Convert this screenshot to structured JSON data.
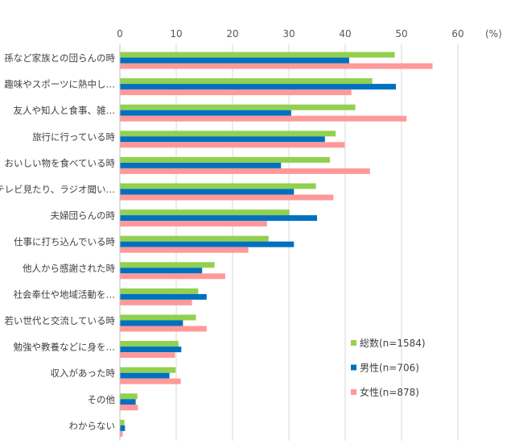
{
  "chart_data": {
    "type": "bar",
    "orientation": "horizontal",
    "unit": "(%)",
    "xlim": [
      0,
      60
    ],
    "x_ticks": [
      0,
      10,
      20,
      30,
      40,
      50,
      60
    ],
    "grid": true,
    "legend_position": "bottom-right",
    "categories": [
      "孫など家族との団らんの時",
      "趣味やスポーツに熱中し…",
      "友人や知人と食事、雑…",
      "旅行に行っている時",
      "おいしい物を食べている時",
      "テレビ見たり、ラジオ聞い…",
      "夫婦団らんの時",
      "仕事に打ち込んでいる時",
      "他人から感謝された時",
      "社会奉仕や地域活動を…",
      "若い世代と交流している時",
      "勉強や教養などに身を…",
      "収入があった時",
      "その他",
      "わからない"
    ],
    "series": [
      {
        "name": "総数(n=1584)",
        "color": "#92d050",
        "values": [
          48.8,
          44.8,
          41.8,
          38.3,
          37.3,
          34.8,
          30.1,
          26.4,
          16.8,
          13.9,
          13.5,
          10.4,
          9.9,
          3.1,
          0.8
        ]
      },
      {
        "name": "男性(n=706)",
        "color": "#0070c0",
        "values": [
          40.7,
          49.0,
          30.4,
          36.4,
          28.6,
          30.9,
          35.0,
          30.9,
          14.6,
          15.4,
          11.2,
          10.9,
          8.8,
          2.8,
          0.9
        ]
      },
      {
        "name": "女性(n=878)",
        "color": "#ff9999",
        "values": [
          55.5,
          41.1,
          50.9,
          39.9,
          44.4,
          37.9,
          26.1,
          22.8,
          18.7,
          12.8,
          15.4,
          9.8,
          10.8,
          3.2,
          0.5
        ]
      }
    ]
  }
}
